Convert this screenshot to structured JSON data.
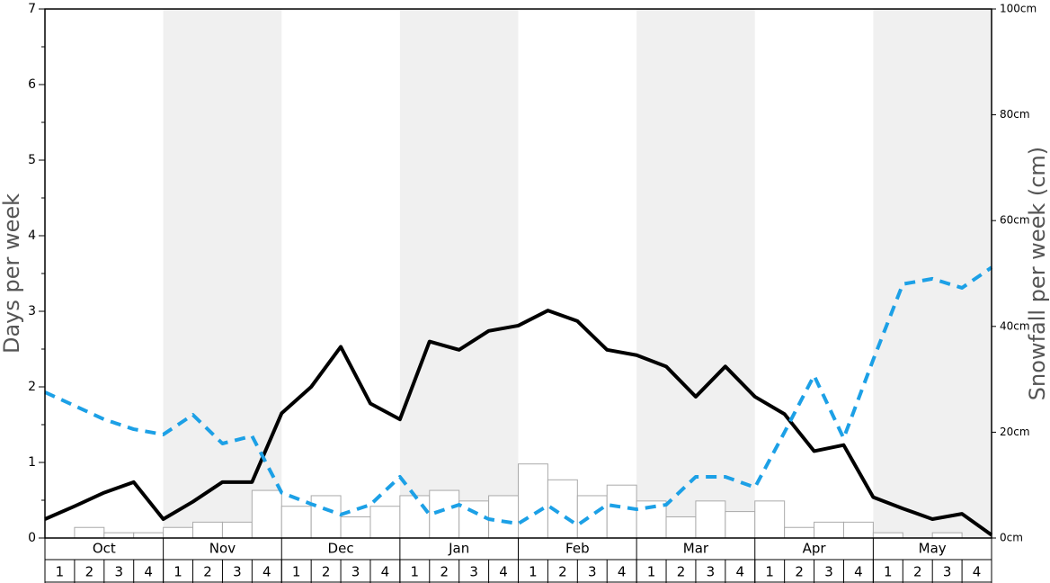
{
  "chart_data": {
    "type": "bar",
    "y_label": "Days per week",
    "y2_label": "Snowfall per week (cm)",
    "months": [
      "Oct",
      "Nov",
      "Dec",
      "Jan",
      "Feb",
      "Mar",
      "Apr",
      "May"
    ],
    "categories": [
      1,
      2,
      3,
      4,
      1,
      2,
      3,
      4,
      1,
      2,
      3,
      4,
      1,
      2,
      3,
      4,
      1,
      2,
      3,
      4,
      1,
      2,
      3,
      4,
      1,
      2,
      3,
      4,
      1,
      2,
      3,
      4
    ],
    "ylim": [
      0,
      7
    ],
    "yticks": [
      0,
      1,
      2,
      3,
      4,
      5,
      6,
      7
    ],
    "yminorticks": [
      0.5,
      1.5,
      2.5,
      3.5,
      4.5,
      5.5,
      6.5
    ],
    "y2lim": [
      0,
      100
    ],
    "y2ticks": [
      {
        "value": 0,
        "label": "0cm"
      },
      {
        "value": 20,
        "label": "20cm"
      },
      {
        "value": 40,
        "label": "40cm"
      },
      {
        "value": 60,
        "label": "60cm"
      },
      {
        "value": 80,
        "label": "80cm"
      },
      {
        "value": 100,
        "label": "100cm"
      }
    ],
    "series": [
      {
        "axis": "y2",
        "color": "#ffffff",
        "values": [
          0,
          2,
          1,
          1,
          2,
          3,
          3,
          9,
          6,
          8,
          4,
          6,
          8,
          9,
          7,
          8,
          14,
          11,
          8,
          10,
          7,
          4,
          7,
          5,
          7,
          2,
          3,
          3,
          1,
          0,
          1,
          0
        ]
      }
    ],
    "line_series": [
      {
        "color": "#000000",
        "dashed": false,
        "values": [
          0.25,
          0.42,
          0.6,
          0.74,
          0.25,
          0.48,
          0.74,
          0.74,
          1.65,
          2.0,
          2.53,
          1.78,
          1.57,
          2.6,
          2.49,
          2.74,
          2.81,
          3.01,
          2.87,
          2.49,
          2.42,
          2.27,
          1.87,
          2.27,
          1.87,
          1.64,
          1.15,
          1.23,
          0.54,
          0.39,
          0.25,
          0.32,
          0.04
        ]
      },
      {
        "color": "#1ca0e6",
        "dashed": true,
        "values": [
          1.93,
          1.75,
          1.57,
          1.44,
          1.37,
          1.63,
          1.25,
          1.35,
          0.6,
          0.45,
          0.31,
          0.44,
          0.81,
          0.31,
          0.44,
          0.25,
          0.19,
          0.43,
          0.17,
          0.44,
          0.38,
          0.44,
          0.81,
          0.81,
          0.67,
          1.4,
          2.15,
          1.32,
          2.36,
          3.36,
          3.43,
          3.31,
          3.58
        ]
      }
    ]
  }
}
